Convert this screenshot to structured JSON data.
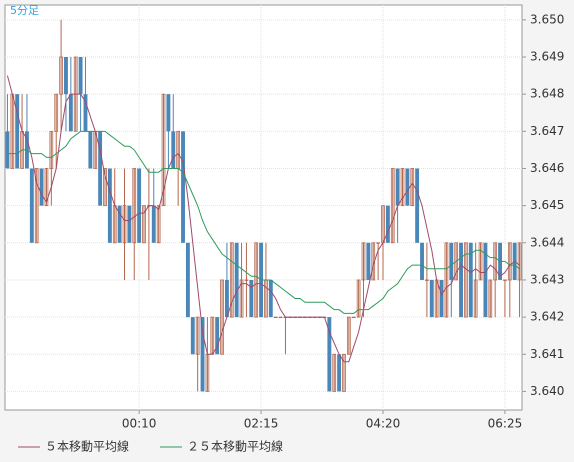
{
  "chart_data": {
    "type": "candlestick",
    "timeframe_label": "5分足",
    "categories": [
      null,
      null,
      null,
      null,
      null,
      null,
      null,
      null,
      null,
      null,
      null,
      null,
      null,
      null,
      null,
      null,
      null,
      null,
      null,
      null,
      null,
      null,
      null,
      null,
      null,
      null,
      null,
      "00:10",
      null,
      null,
      null,
      null,
      null,
      null,
      null,
      null,
      null,
      null,
      null,
      null,
      null,
      null,
      null,
      null,
      null,
      null,
      null,
      null,
      null,
      null,
      null,
      null,
      "02:15",
      null,
      null,
      null,
      null,
      null,
      null,
      null,
      null,
      null,
      null,
      null,
      null,
      null,
      null,
      null,
      null,
      null,
      null,
      null,
      null,
      null,
      null,
      null,
      null,
      "04:20",
      null,
      null,
      null,
      null,
      null,
      null,
      null,
      null,
      null,
      null,
      null,
      null,
      null,
      null,
      null,
      null,
      null,
      null,
      null,
      null,
      null,
      null,
      null,
      null,
      "06:25",
      null,
      null,
      null
    ],
    "open": [
      3.647,
      3.646,
      3.648,
      3.646,
      3.647,
      3.646,
      3.644,
      3.646,
      3.645,
      3.646,
      3.647,
      3.648,
      3.649,
      3.648,
      3.647,
      3.649,
      3.648,
      3.647,
      3.646,
      3.647,
      3.645,
      3.646,
      3.644,
      3.645,
      3.644,
      3.645,
      3.644,
      3.646,
      3.644,
      3.645,
      3.645,
      3.644,
      3.645,
      3.648,
      3.647,
      3.646,
      3.647,
      3.644,
      3.642,
      3.641,
      3.642,
      3.64,
      3.641,
      3.642,
      3.641,
      3.643,
      3.642,
      3.644,
      3.642,
      3.643,
      3.643,
      3.642,
      3.644,
      3.642,
      3.643,
      3.642,
      3.642,
      3.642,
      3.642,
      3.642,
      3.642,
      3.642,
      3.642,
      3.642,
      3.642,
      3.642,
      3.642,
      3.64,
      3.641,
      3.64,
      3.641,
      3.642,
      3.642,
      3.643,
      3.644,
      3.643,
      3.644,
      3.644,
      3.645,
      3.644,
      3.646,
      3.645,
      3.646,
      3.645,
      3.646,
      3.644,
      3.643,
      3.643,
      3.642,
      3.643,
      3.642,
      3.644,
      3.643,
      3.644,
      3.642,
      3.644,
      3.642,
      3.643,
      3.644,
      3.642,
      3.643,
      3.644,
      3.643,
      3.643,
      3.644,
      3.643
    ],
    "high": [
      3.648,
      3.648,
      3.648,
      3.648,
      3.648,
      3.646,
      3.646,
      3.646,
      3.646,
      3.647,
      3.648,
      3.65,
      3.649,
      3.649,
      3.649,
      3.649,
      3.649,
      3.647,
      3.647,
      3.647,
      3.646,
      3.646,
      3.646,
      3.645,
      3.646,
      3.645,
      3.646,
      3.646,
      3.645,
      3.646,
      3.646,
      3.645,
      3.648,
      3.648,
      3.648,
      3.647,
      3.647,
      3.644,
      3.642,
      3.642,
      3.642,
      3.642,
      3.642,
      3.642,
      3.643,
      3.644,
      3.644,
      3.644,
      3.644,
      3.644,
      3.643,
      3.644,
      3.644,
      3.644,
      3.643,
      3.642,
      3.642,
      3.642,
      3.642,
      3.642,
      3.642,
      3.642,
      3.642,
      3.642,
      3.642,
      3.642,
      3.642,
      3.641,
      3.641,
      3.641,
      3.642,
      3.642,
      3.643,
      3.644,
      3.644,
      3.644,
      3.644,
      3.645,
      3.645,
      3.646,
      3.646,
      3.646,
      3.646,
      3.646,
      3.646,
      3.644,
      3.644,
      3.643,
      3.643,
      3.643,
      3.644,
      3.644,
      3.644,
      3.644,
      3.644,
      3.644,
      3.644,
      3.644,
      3.644,
      3.643,
      3.644,
      3.644,
      3.643,
      3.644,
      3.644,
      3.644
    ],
    "low": [
      3.646,
      3.646,
      3.646,
      3.646,
      3.646,
      3.644,
      3.644,
      3.645,
      3.645,
      3.645,
      3.646,
      3.647,
      3.647,
      3.647,
      3.647,
      3.647,
      3.647,
      3.646,
      3.646,
      3.645,
      3.645,
      3.644,
      3.644,
      3.644,
      3.643,
      3.644,
      3.643,
      3.644,
      3.644,
      3.643,
      3.644,
      3.644,
      3.645,
      3.646,
      3.646,
      3.645,
      3.644,
      3.642,
      3.641,
      3.64,
      3.64,
      3.64,
      3.641,
      3.641,
      3.641,
      3.642,
      3.642,
      3.642,
      3.642,
      3.642,
      3.642,
      3.642,
      3.642,
      3.642,
      3.642,
      3.642,
      3.642,
      3.641,
      3.642,
      3.642,
      3.642,
      3.642,
      3.642,
      3.642,
      3.642,
      3.642,
      3.64,
      3.64,
      3.64,
      3.64,
      3.641,
      3.642,
      3.642,
      3.642,
      3.643,
      3.643,
      3.643,
      3.643,
      3.644,
      3.644,
      3.644,
      3.645,
      3.645,
      3.645,
      3.644,
      3.643,
      3.642,
      3.642,
      3.642,
      3.642,
      3.642,
      3.642,
      3.643,
      3.642,
      3.642,
      3.642,
      3.642,
      3.643,
      3.642,
      3.642,
      3.642,
      3.643,
      3.642,
      3.642,
      3.643,
      3.642
    ],
    "close": [
      3.646,
      3.648,
      3.646,
      3.647,
      3.646,
      3.644,
      3.646,
      3.645,
      3.646,
      3.647,
      3.648,
      3.649,
      3.648,
      3.647,
      3.649,
      3.648,
      3.647,
      3.646,
      3.647,
      3.645,
      3.646,
      3.644,
      3.645,
      3.644,
      3.645,
      3.644,
      3.646,
      3.644,
      3.645,
      3.645,
      3.644,
      3.645,
      3.648,
      3.647,
      3.646,
      3.647,
      3.644,
      3.642,
      3.641,
      3.642,
      3.64,
      3.641,
      3.642,
      3.641,
      3.643,
      3.642,
      3.644,
      3.642,
      3.643,
      3.643,
      3.642,
      3.644,
      3.642,
      3.643,
      3.642,
      3.642,
      3.642,
      3.642,
      3.642,
      3.642,
      3.642,
      3.642,
      3.642,
      3.642,
      3.642,
      3.642,
      3.64,
      3.641,
      3.64,
      3.641,
      3.642,
      3.642,
      3.643,
      3.644,
      3.643,
      3.644,
      3.644,
      3.645,
      3.644,
      3.646,
      3.645,
      3.646,
      3.645,
      3.646,
      3.644,
      3.643,
      3.643,
      3.642,
      3.643,
      3.642,
      3.644,
      3.643,
      3.644,
      3.642,
      3.644,
      3.642,
      3.643,
      3.644,
      3.642,
      3.643,
      3.644,
      3.643,
      3.643,
      3.644,
      3.643,
      3.644
    ],
    "up_color": "#b5674d",
    "down_color": "#4a86b8",
    "series": [
      {
        "name": "５本移動平均線",
        "color": "#a04a6a",
        "values": [
          3.6485,
          3.648,
          3.6475,
          3.647,
          3.6468,
          3.6463,
          3.6456,
          3.6453,
          3.6451,
          3.6455,
          3.646,
          3.647,
          3.6478,
          3.648,
          3.648,
          3.648,
          3.6478,
          3.6474,
          3.647,
          3.6465,
          3.6458,
          3.6454,
          3.645,
          3.6448,
          3.6446,
          3.6446,
          3.6447,
          3.6448,
          3.6448,
          3.645,
          3.645,
          3.6449,
          3.6454,
          3.646,
          3.6463,
          3.6464,
          3.6462,
          3.6452,
          3.644,
          3.6428,
          3.6416,
          3.641,
          3.641,
          3.6412,
          3.6416,
          3.642,
          3.6424,
          3.6427,
          3.6429,
          3.6429,
          3.6428,
          3.6429,
          3.6429,
          3.6428,
          3.6427,
          3.6425,
          3.6422,
          3.642,
          3.642,
          3.642,
          3.642,
          3.642,
          3.642,
          3.642,
          3.642,
          3.642,
          3.6416,
          3.6413,
          3.641,
          3.6408,
          3.6408,
          3.6412,
          3.6416,
          3.6422,
          3.6428,
          3.6434,
          3.6438,
          3.644,
          3.6443,
          3.6446,
          3.645,
          3.6452,
          3.6454,
          3.6456,
          3.6454,
          3.645,
          3.6444,
          3.6438,
          3.643,
          3.6426,
          3.6428,
          3.6429,
          3.6432,
          3.6434,
          3.6433,
          3.6432,
          3.6433,
          3.6432,
          3.6432,
          3.6434,
          3.6433,
          3.6431,
          3.6432,
          3.6434,
          3.6435,
          3.6434
        ]
      },
      {
        "name": "２５本移動平均線",
        "color": "#2e9a5e",
        "values": [
          3.6464,
          3.6464,
          3.6464,
          3.6465,
          3.6465,
          3.6464,
          3.6464,
          3.6464,
          3.6463,
          3.6463,
          3.6464,
          3.6465,
          3.6466,
          3.6468,
          3.6469,
          3.647,
          3.647,
          3.647,
          3.647,
          3.647,
          3.647,
          3.6469,
          3.6468,
          3.6467,
          3.6466,
          3.6466,
          3.6465,
          3.6463,
          3.6461,
          3.6459,
          3.6459,
          3.6459,
          3.646,
          3.646,
          3.646,
          3.646,
          3.6459,
          3.6456,
          3.6453,
          3.645,
          3.6446,
          3.6443,
          3.6441,
          3.6439,
          3.6437,
          3.6436,
          3.6435,
          3.6434,
          3.6433,
          3.6432,
          3.6431,
          3.6431,
          3.643,
          3.643,
          3.643,
          3.6429,
          3.6428,
          3.6427,
          3.6426,
          3.6425,
          3.6425,
          3.6424,
          3.6424,
          3.6424,
          3.6424,
          3.6424,
          3.6423,
          3.6422,
          3.6422,
          3.6421,
          3.6421,
          3.6421,
          3.6422,
          3.6422,
          3.6422,
          3.6423,
          3.6424,
          3.6425,
          3.6427,
          3.6428,
          3.6429,
          3.6431,
          3.6433,
          3.6434,
          3.6434,
          3.6434,
          3.6433,
          3.6433,
          3.6433,
          3.6433,
          3.6433,
          3.6434,
          3.6435,
          3.6436,
          3.6437,
          3.6437,
          3.6438,
          3.6438,
          3.6437,
          3.6436,
          3.6436,
          3.6435,
          3.6435,
          3.6434,
          3.6434,
          3.6433
        ]
      }
    ],
    "ylim": [
      3.6395,
      3.6504
    ],
    "yticks": [
      {
        "value": 3.64,
        "label": "3.640"
      },
      3.641,
      3.642,
      3.643,
      3.644,
      3.645,
      3.646,
      3.647,
      3.648,
      3.649,
      {
        "value": 3.65,
        "label": "3.650"
      }
    ],
    "grid": true
  }
}
